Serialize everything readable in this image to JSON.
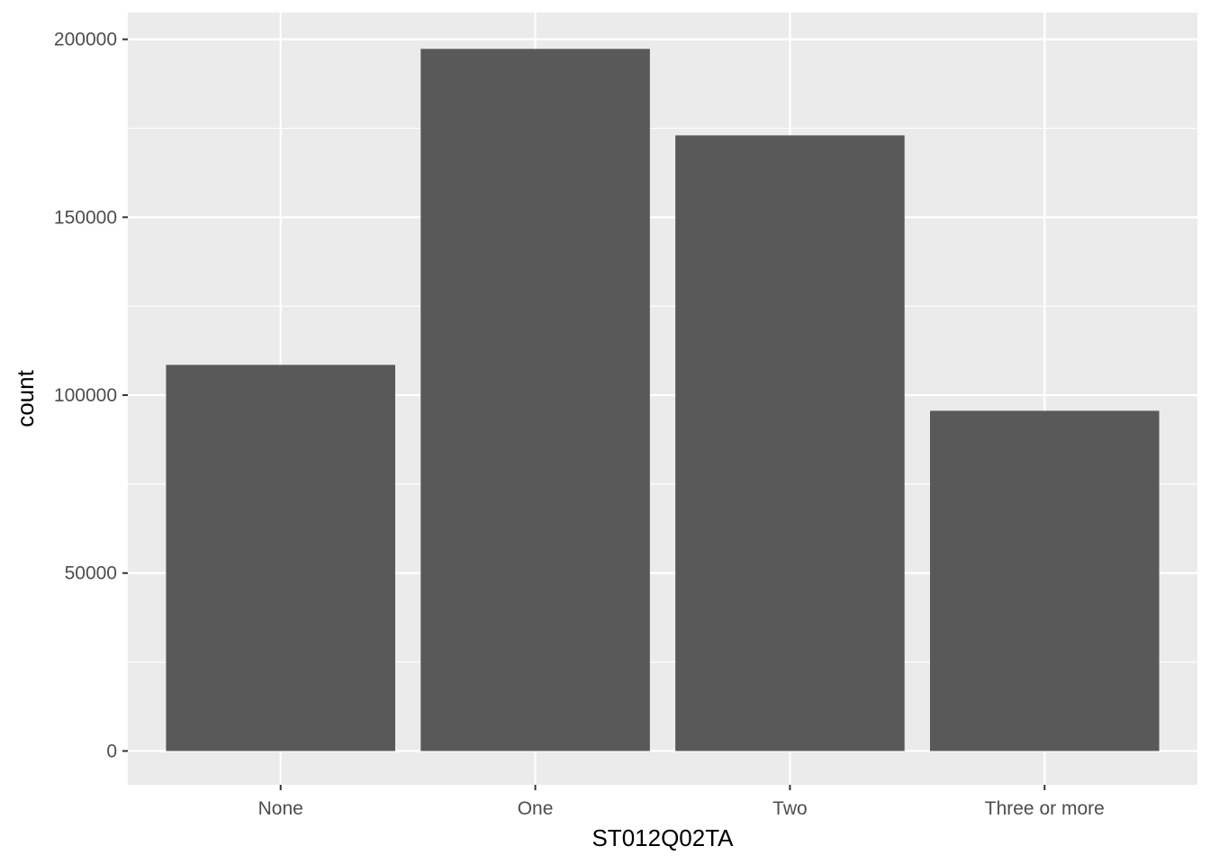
{
  "chart_data": {
    "type": "bar",
    "categories": [
      "None",
      "One",
      "Two",
      "Three or more"
    ],
    "values": [
      108500,
      197300,
      173000,
      95600
    ],
    "title": "",
    "xlabel": "ST012Q02TA",
    "ylabel": "count",
    "ylim": [
      -9500,
      207500
    ],
    "yticks": [
      0,
      50000,
      100000,
      150000,
      200000
    ],
    "ytick_labels": [
      "0",
      "50000",
      "100000",
      "150000",
      "200000"
    ],
    "grid": true,
    "legend": "none"
  },
  "colors": {
    "panel_background": "#ebebeb",
    "grid_line": "#ffffff",
    "bar_fill": "#595959",
    "tick_text": "#4d4d4d",
    "axis_title_text": "#000000"
  }
}
